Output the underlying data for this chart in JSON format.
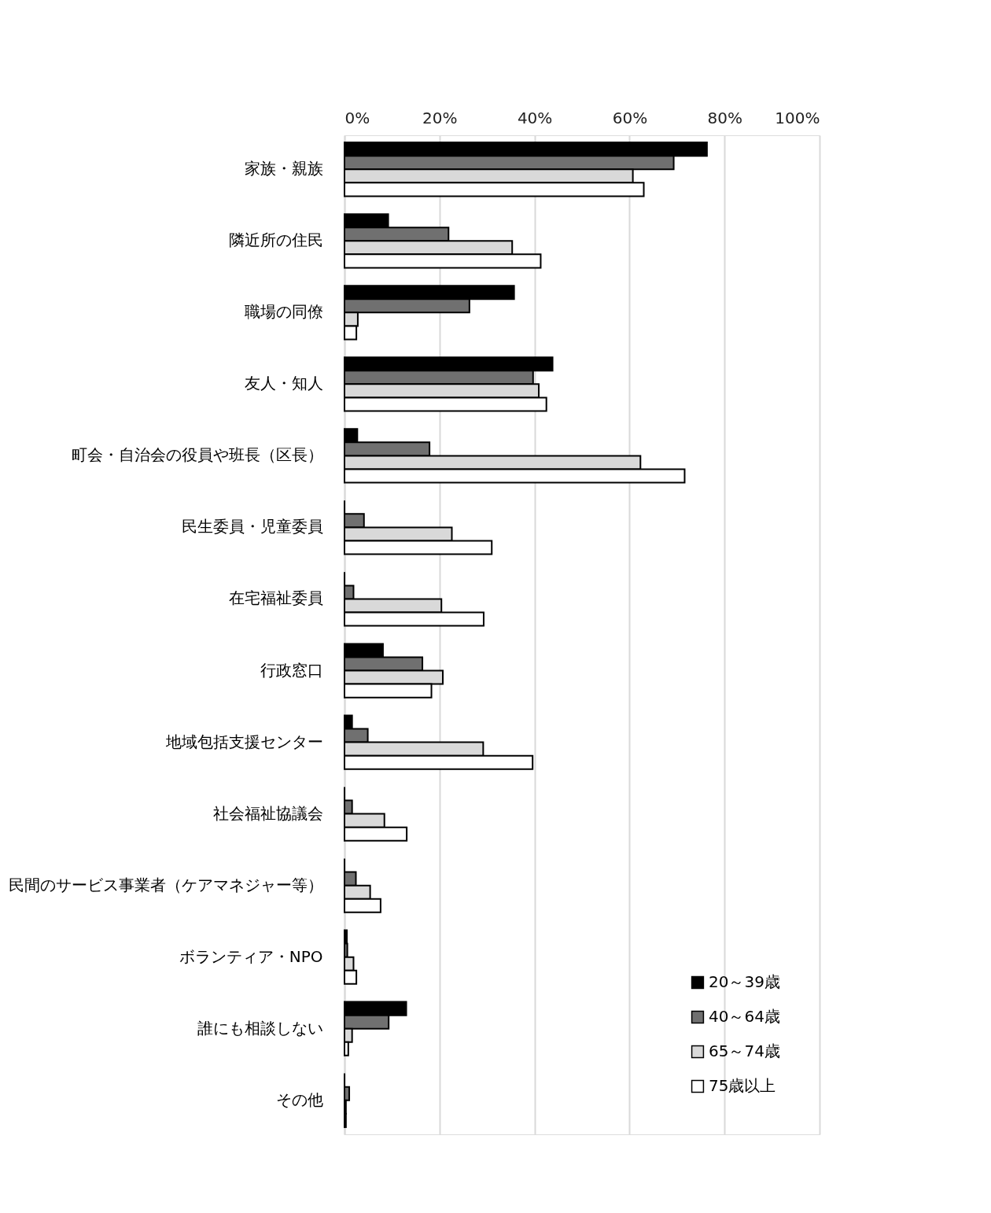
{
  "chart_data": {
    "type": "bar",
    "orientation": "horizontal",
    "categories": [
      "家族・親族",
      "隣近所の住民",
      "職場の同僚",
      "友人・知人",
      "町会・自治会の役員や班長（区長）",
      "民生委員・児童委員",
      "在宅福祉委員",
      "行政窓口",
      "地域包括支援センター",
      "社会福祉協議会",
      "民間のサービス事業者（ケアマネジャー等）",
      "ボランティア・NPO",
      "誰にも相談しない",
      "その他"
    ],
    "series": [
      {
        "name": "20～39歳",
        "color": "#000000",
        "values": [
          76.3,
          9.2,
          35.7,
          43.8,
          2.7,
          0,
          0,
          8.1,
          1.6,
          0,
          0,
          0.5,
          13.0,
          0
        ]
      },
      {
        "name": "40～64歳",
        "color": "#707070",
        "values": [
          69.3,
          21.9,
          26.3,
          39.7,
          17.9,
          4.1,
          1.9,
          16.4,
          4.9,
          1.6,
          2.4,
          0.6,
          9.3,
          1.0
        ]
      },
      {
        "name": "65～74歳",
        "color": "#d9d9d9",
        "values": [
          60.7,
          35.3,
          2.8,
          40.9,
          62.3,
          22.6,
          20.4,
          20.7,
          29.2,
          8.4,
          5.4,
          1.9,
          1.6,
          0.3
        ]
      },
      {
        "name": "75歳以上",
        "color": "#ffffff",
        "values": [
          63.0,
          41.3,
          2.5,
          42.5,
          71.6,
          31.0,
          29.3,
          18.3,
          39.6,
          13.1,
          7.6,
          2.5,
          0.8,
          0.3
        ]
      }
    ],
    "xlim": [
      0,
      100
    ],
    "xticks": [
      {
        "value": 0,
        "label": "0%"
      },
      {
        "value": 20,
        "label": "20%"
      },
      {
        "value": 40,
        "label": "40%"
      },
      {
        "value": 60,
        "label": "60%"
      },
      {
        "value": 80,
        "label": "80%"
      },
      {
        "value": 100,
        "label": "100%"
      }
    ],
    "grid": "x",
    "legend": "bottom right"
  }
}
